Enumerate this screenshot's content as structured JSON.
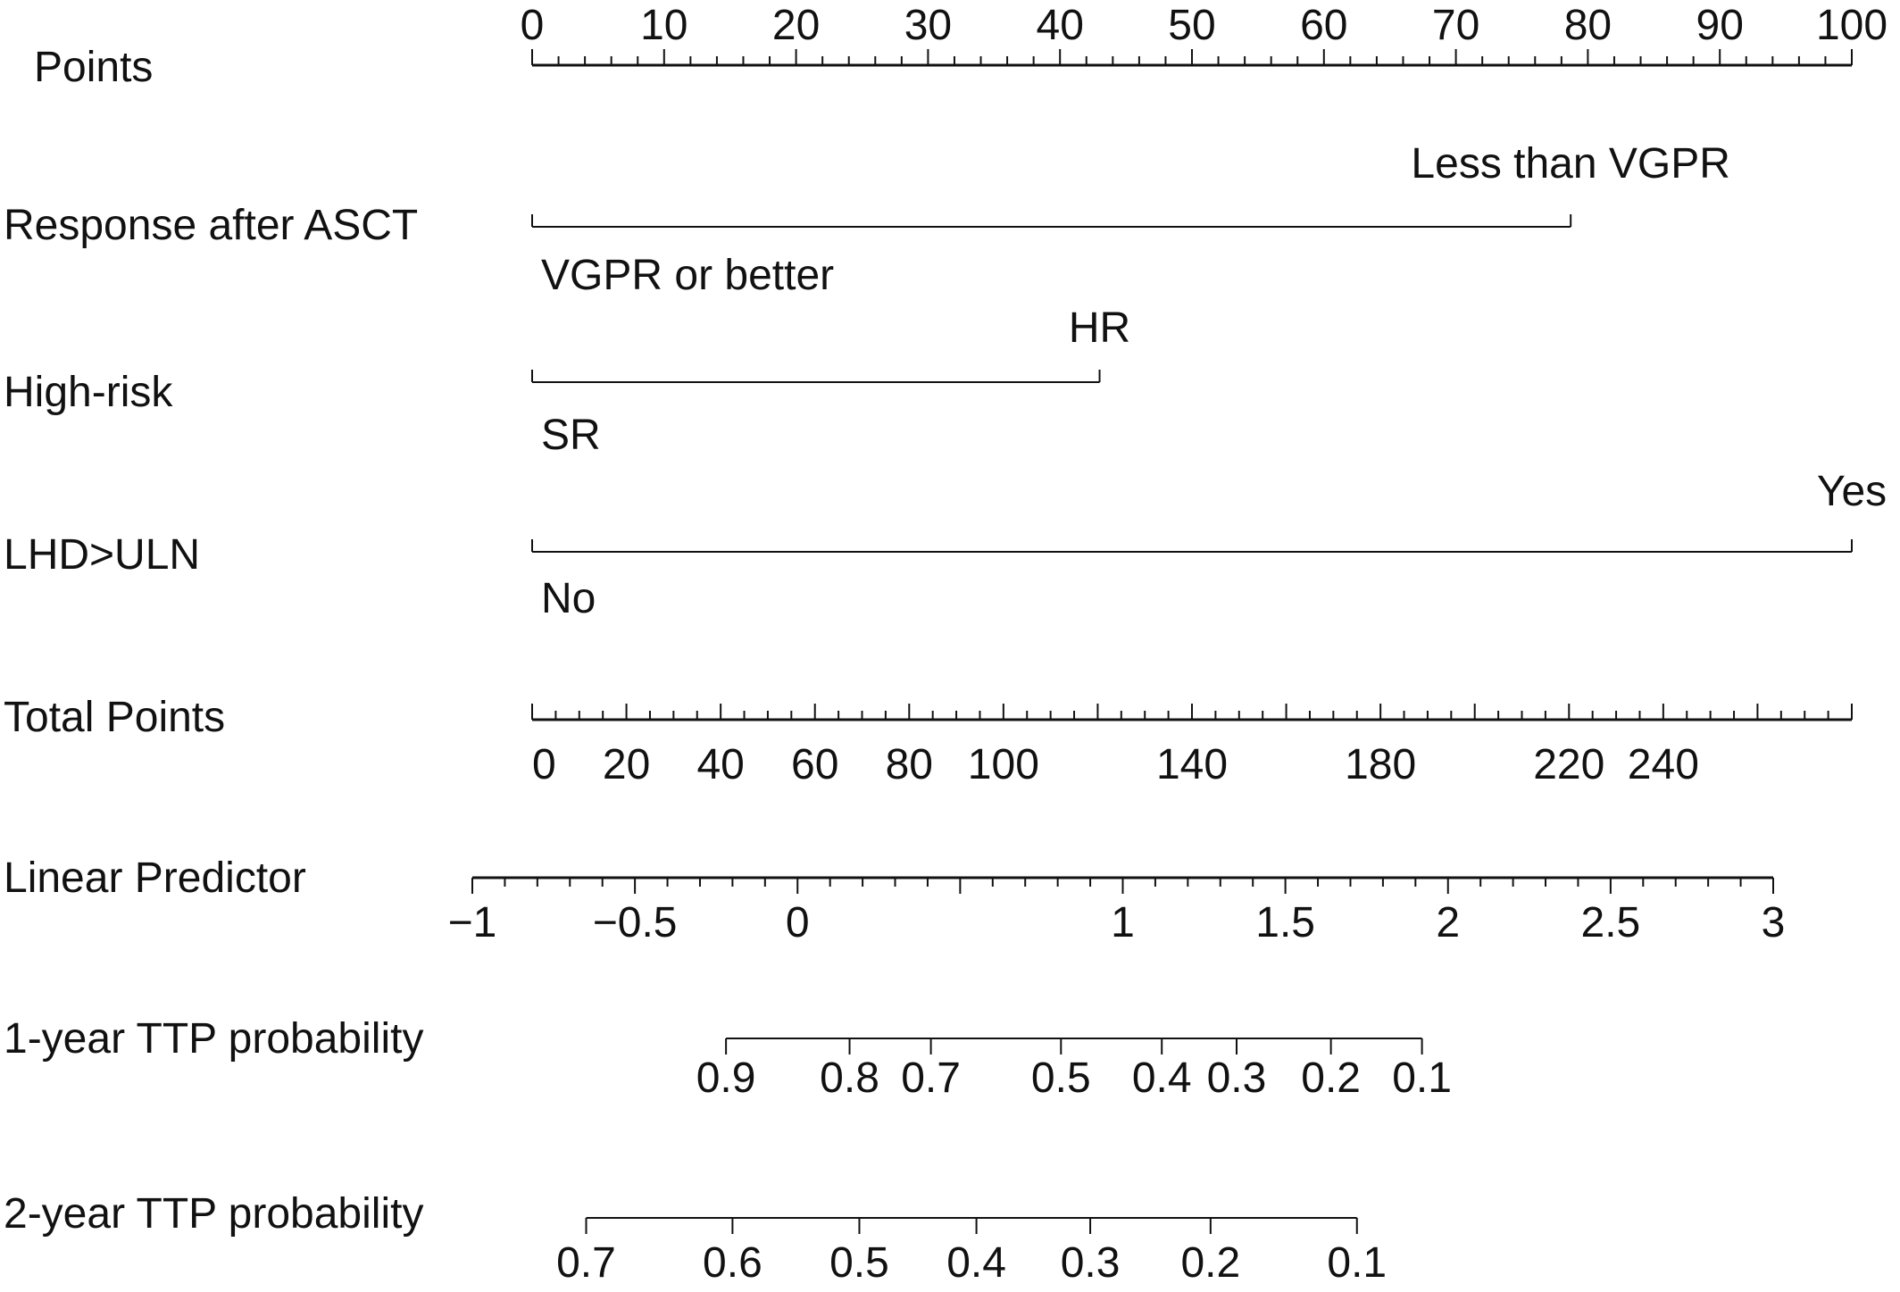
{
  "chart_data": {
    "type": "nomogram",
    "rows": [
      {
        "key": "points",
        "label": "Points",
        "scale": {
          "min": 0,
          "max": 100,
          "major_ticks": [
            0,
            10,
            20,
            30,
            40,
            50,
            60,
            70,
            80,
            90,
            100
          ],
          "minor_step": 2
        },
        "tick_labels": [
          "0",
          "10",
          "20",
          "30",
          "40",
          "50",
          "60",
          "70",
          "80",
          "90",
          "100"
        ]
      },
      {
        "key": "response",
        "label": "Response after ASCT",
        "levels": [
          {
            "label": "VGPR or better",
            "points": 0
          },
          {
            "label": "Less than VGPR",
            "points": 78.7
          }
        ]
      },
      {
        "key": "highrisk",
        "label": "High-risk",
        "levels": [
          {
            "label": "SR",
            "points": 0
          },
          {
            "label": "HR",
            "points": 43
          }
        ]
      },
      {
        "key": "ldh",
        "label": "LHD>ULN",
        "levels": [
          {
            "label": "No",
            "points": 0
          },
          {
            "label": "Yes",
            "points": 100
          }
        ]
      },
      {
        "key": "total",
        "label": "Total Points",
        "scale": {
          "min": 0,
          "max": 280,
          "major_ticks": [
            0,
            20,
            40,
            60,
            80,
            100,
            140,
            180,
            220,
            240,
            280
          ],
          "minor_step": 5
        },
        "tick_labels": [
          "0",
          "20",
          "40",
          "60",
          "80",
          "100",
          "140",
          "180",
          "220",
          "240"
        ]
      },
      {
        "key": "lp",
        "label": "Linear Predictor",
        "scale": {
          "min": -1.0,
          "max": 3.0,
          "major_ticks": [
            -1,
            -0.5,
            0,
            0.5,
            1,
            1.5,
            2,
            2.5,
            3
          ],
          "minor_step": 0.1
        },
        "tick_labels": [
          "−1",
          "−0.5",
          "0",
          "1",
          "1.5",
          "2",
          "2.5",
          "3"
        ],
        "tick_label_values": [
          -1,
          -0.5,
          0,
          1,
          1.5,
          2,
          2.5,
          3
        ]
      },
      {
        "key": "p1",
        "label": "1-year TTP probability",
        "ticks": [
          0.9,
          0.8,
          0.7,
          0.5,
          0.4,
          0.3,
          0.2,
          0.1
        ],
        "tick_lp": [
          -0.22,
          0.16,
          0.41,
          0.81,
          1.12,
          1.35,
          1.64,
          1.92
        ],
        "tick_labels": [
          "0.9",
          "0.8",
          "0.7",
          "0.5",
          "0.4",
          "0.3",
          "0.2",
          "0.1"
        ]
      },
      {
        "key": "p2",
        "label": "2-year TTP probability",
        "ticks": [
          0.7,
          0.6,
          0.5,
          0.4,
          0.3,
          0.2,
          0.1
        ],
        "tick_lp": [
          -0.65,
          -0.2,
          0.19,
          0.55,
          0.9,
          1.27,
          1.72
        ],
        "tick_labels": [
          "0.7",
          "0.6",
          "0.5",
          "0.4",
          "0.3",
          "0.2",
          "0.1"
        ]
      }
    ]
  }
}
